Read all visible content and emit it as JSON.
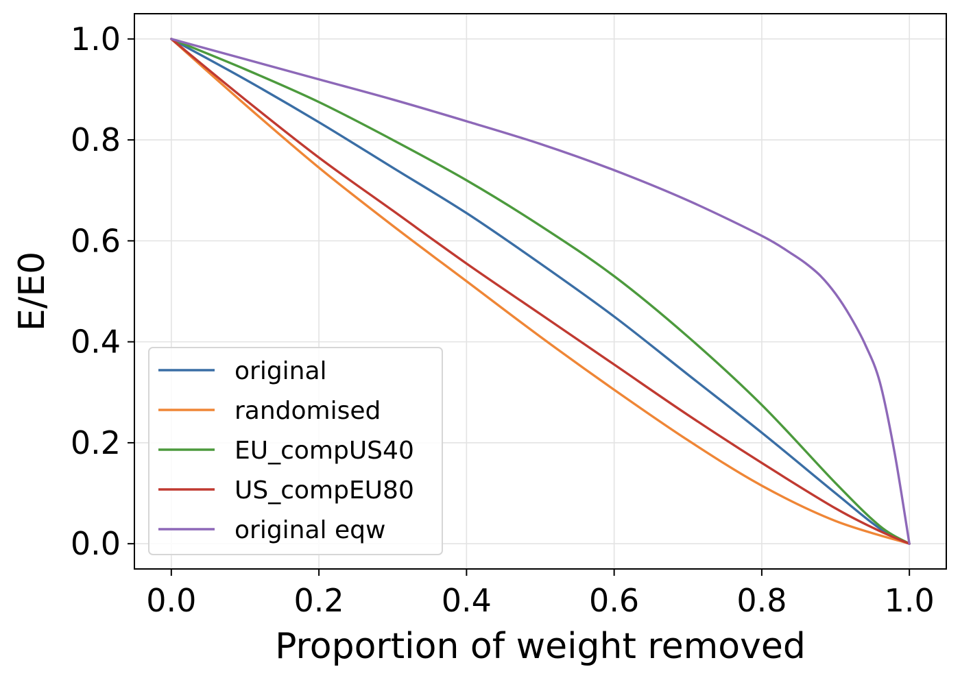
{
  "chart_data": {
    "type": "line",
    "title": "",
    "xlabel": "Proportion of weight removed",
    "ylabel": "E/E0",
    "xlim": [
      -0.05,
      1.05
    ],
    "ylim": [
      -0.05,
      1.05
    ],
    "xticks": [
      0.0,
      0.2,
      0.4,
      0.6,
      0.8,
      1.0
    ],
    "xtick_labels": [
      "0.0",
      "0.2",
      "0.4",
      "0.6",
      "0.8",
      "1.0"
    ],
    "yticks": [
      0.0,
      0.2,
      0.4,
      0.6,
      0.8,
      1.0
    ],
    "ytick_labels": [
      "0.0",
      "0.2",
      "0.4",
      "0.6",
      "0.8",
      "1.0"
    ],
    "grid": true,
    "legend_position": "lower-left",
    "series": [
      {
        "name": "original",
        "color": "#3a6ea5",
        "x": [
          0.0,
          0.1,
          0.2,
          0.3,
          0.4,
          0.5,
          0.6,
          0.7,
          0.8,
          0.9,
          0.96,
          1.0
        ],
        "y": [
          1.0,
          0.92,
          0.835,
          0.745,
          0.655,
          0.555,
          0.45,
          0.335,
          0.22,
          0.1,
          0.03,
          0.0
        ]
      },
      {
        "name": "randomised",
        "color": "#ef8636",
        "x": [
          0.0,
          0.1,
          0.2,
          0.3,
          0.4,
          0.5,
          0.6,
          0.7,
          0.8,
          0.9,
          1.0
        ],
        "y": [
          1.0,
          0.87,
          0.745,
          0.63,
          0.52,
          0.41,
          0.305,
          0.205,
          0.115,
          0.045,
          0.0
        ]
      },
      {
        "name": "EU_compUS40",
        "color": "#4c9a3d",
        "x": [
          0.0,
          0.1,
          0.2,
          0.3,
          0.4,
          0.5,
          0.6,
          0.7,
          0.8,
          0.9,
          0.96,
          1.0
        ],
        "y": [
          1.0,
          0.94,
          0.875,
          0.8,
          0.72,
          0.63,
          0.53,
          0.41,
          0.275,
          0.12,
          0.035,
          0.0
        ]
      },
      {
        "name": "US_compEU80",
        "color": "#c03a31",
        "x": [
          0.0,
          0.1,
          0.2,
          0.3,
          0.4,
          0.5,
          0.6,
          0.7,
          0.8,
          0.9,
          0.96,
          1.0
        ],
        "y": [
          1.0,
          0.88,
          0.765,
          0.66,
          0.555,
          0.455,
          0.355,
          0.255,
          0.16,
          0.07,
          0.025,
          0.0
        ]
      },
      {
        "name": "original eqw",
        "color": "#8d68b8",
        "x": [
          0.0,
          0.1,
          0.2,
          0.3,
          0.4,
          0.5,
          0.6,
          0.7,
          0.8,
          0.84,
          0.86,
          0.88,
          0.9,
          0.92,
          0.94,
          0.96,
          0.98,
          1.0
        ],
        "y": [
          1.0,
          0.96,
          0.92,
          0.88,
          0.837,
          0.792,
          0.74,
          0.68,
          0.61,
          0.575,
          0.555,
          0.53,
          0.495,
          0.45,
          0.395,
          0.32,
          0.18,
          0.0
        ]
      }
    ]
  }
}
